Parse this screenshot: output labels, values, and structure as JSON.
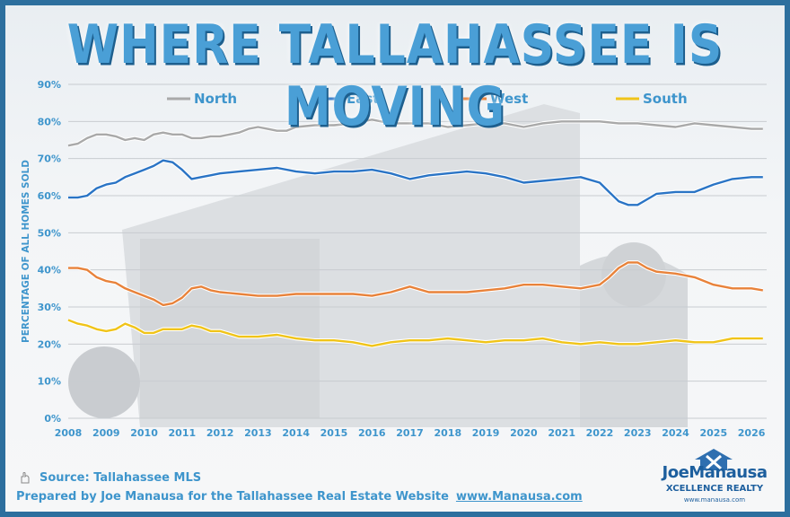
{
  "title": "WHERE TALLAHASSEE IS MOVING",
  "footer": {
    "source": "Source: Tallahassee MLS",
    "credit": "Prepared by Joe Manausa for the Tallahassee Real Estate Website",
    "url": "www.Manausa.com"
  },
  "logo": {
    "brand": "JoeManausa",
    "sub": "XCELLENCE REALTY",
    "site": "www.manausa.com"
  },
  "chart_data": {
    "type": "line",
    "title": "WHERE TALLAHASSEE IS MOVING",
    "xlabel": "",
    "ylabel": "PERCENTAGE OF ALL HOMES SOLD",
    "ylim": [
      0,
      90
    ],
    "xlim": [
      2008,
      2026.4
    ],
    "y_ticks": [
      "0%",
      "10%",
      "20%",
      "30%",
      "40%",
      "50%",
      "60%",
      "70%",
      "80%",
      "90%"
    ],
    "x_ticks": [
      "2008",
      "2009",
      "2010",
      "2011",
      "2012",
      "2013",
      "2014",
      "2015",
      "2016",
      "2017",
      "2018",
      "2019",
      "2020",
      "2021",
      "2022",
      "2023",
      "2024",
      "2025",
      "2026"
    ],
    "grid": true,
    "legend_position": "top",
    "series": [
      {
        "name": "North",
        "color": "#a9a9a9",
        "x": [
          2008,
          2008.25,
          2008.5,
          2008.75,
          2009,
          2009.25,
          2009.5,
          2009.75,
          2010,
          2010.25,
          2010.5,
          2010.75,
          2011,
          2011.25,
          2011.5,
          2011.75,
          2012,
          2012.25,
          2012.5,
          2012.75,
          2013,
          2013.25,
          2013.5,
          2013.75,
          2014,
          2014.5,
          2015,
          2015.5,
          2016,
          2016.5,
          2017,
          2017.5,
          2018,
          2018.5,
          2019,
          2019.5,
          2020,
          2020.5,
          2021,
          2021.5,
          2022,
          2022.5,
          2023,
          2023.5,
          2024,
          2024.5,
          2025,
          2025.5,
          2026,
          2026.3
        ],
        "y": [
          73.5,
          74,
          75.5,
          76.5,
          76.5,
          76,
          75,
          75.5,
          75,
          76.5,
          77,
          76.5,
          76.5,
          75.5,
          75.5,
          76,
          76,
          76.5,
          77,
          78,
          78.5,
          78,
          77.5,
          77.5,
          78.5,
          79,
          79,
          79.5,
          80.5,
          79.5,
          79.5,
          79.5,
          78.5,
          79,
          79.5,
          79.5,
          78.5,
          79.5,
          80,
          80,
          80,
          79.5,
          79.5,
          79,
          78.5,
          79.5,
          79,
          78.5,
          78,
          78
        ]
      },
      {
        "name": "East",
        "color": "#2a74c5",
        "x": [
          2008,
          2008.25,
          2008.5,
          2008.75,
          2009,
          2009.25,
          2009.5,
          2009.75,
          2010,
          2010.25,
          2010.5,
          2010.75,
          2011,
          2011.25,
          2011.5,
          2011.75,
          2012,
          2012.5,
          2013,
          2013.5,
          2014,
          2014.5,
          2015,
          2015.5,
          2016,
          2016.5,
          2017,
          2017.5,
          2018,
          2018.5,
          2019,
          2019.5,
          2020,
          2020.5,
          2021,
          2021.5,
          2022,
          2022.25,
          2022.5,
          2022.75,
          2023,
          2023.25,
          2023.5,
          2024,
          2024.5,
          2025,
          2025.5,
          2026,
          2026.3
        ],
        "y": [
          59.5,
          59.5,
          60,
          62,
          63,
          63.5,
          65,
          66,
          67,
          68,
          69.5,
          69,
          67,
          64.5,
          65,
          65.5,
          66,
          66.5,
          67,
          67.5,
          66.5,
          66,
          66.5,
          66.5,
          67,
          66,
          64.5,
          65.5,
          66,
          66.5,
          66,
          65,
          63.5,
          64,
          64.5,
          65,
          63.5,
          61,
          58.5,
          57.5,
          57.5,
          59,
          60.5,
          61,
          61,
          63,
          64.5,
          65,
          65
        ]
      },
      {
        "name": "West",
        "color": "#e8823a",
        "x": [
          2008,
          2008.25,
          2008.5,
          2008.75,
          2009,
          2009.25,
          2009.5,
          2009.75,
          2010,
          2010.25,
          2010.5,
          2010.75,
          2011,
          2011.25,
          2011.5,
          2011.75,
          2012,
          2012.5,
          2013,
          2013.5,
          2014,
          2014.5,
          2015,
          2015.5,
          2016,
          2016.5,
          2017,
          2017.5,
          2018,
          2018.5,
          2019,
          2019.5,
          2020,
          2020.5,
          2021,
          2021.5,
          2022,
          2022.25,
          2022.5,
          2022.75,
          2023,
          2023.25,
          2023.5,
          2024,
          2024.5,
          2025,
          2025.5,
          2026,
          2026.3
        ],
        "y": [
          40.5,
          40.5,
          40,
          38,
          37,
          36.5,
          35,
          34,
          33,
          32,
          30.5,
          31,
          32.5,
          35,
          35.5,
          34.5,
          34,
          33.5,
          33,
          33,
          33.5,
          33.5,
          33.5,
          33.5,
          33,
          34,
          35.5,
          34,
          34,
          34,
          34.5,
          35,
          36,
          36,
          35.5,
          35,
          36,
          38,
          40.5,
          42,
          42,
          40.5,
          39.5,
          39,
          38,
          36,
          35,
          35,
          34.5
        ]
      },
      {
        "name": "South",
        "color": "#f0c419",
        "x": [
          2008,
          2008.25,
          2008.5,
          2008.75,
          2009,
          2009.25,
          2009.5,
          2009.75,
          2010,
          2010.25,
          2010.5,
          2010.75,
          2011,
          2011.25,
          2011.5,
          2011.75,
          2012,
          2012.5,
          2013,
          2013.5,
          2014,
          2014.5,
          2015,
          2015.5,
          2016,
          2016.5,
          2017,
          2017.5,
          2018,
          2018.5,
          2019,
          2019.5,
          2020,
          2020.5,
          2021,
          2021.5,
          2022,
          2022.5,
          2023,
          2023.5,
          2024,
          2024.5,
          2025,
          2025.5,
          2026,
          2026.3
        ],
        "y": [
          26.5,
          25.5,
          25,
          24,
          23.5,
          24,
          25.5,
          24.5,
          23,
          23,
          24,
          24,
          24,
          25,
          24.5,
          23.5,
          23.5,
          22,
          22,
          22.5,
          21.5,
          21,
          21,
          20.5,
          19.5,
          20.5,
          21,
          21,
          21.5,
          21,
          20.5,
          21,
          21,
          21.5,
          20.5,
          20,
          20.5,
          20,
          20,
          20.5,
          21,
          20.5,
          20.5,
          21.5,
          21.5,
          21.5
        ]
      }
    ]
  }
}
